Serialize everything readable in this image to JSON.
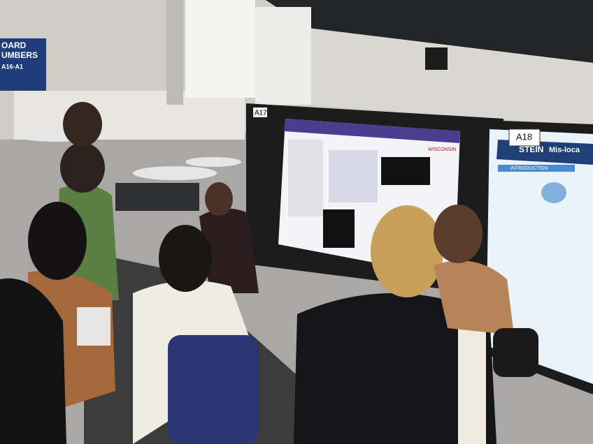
{
  "sign": {
    "lines": [
      "OARD",
      "UMBERS",
      "A16-A1"
    ]
  },
  "posters": [
    {
      "board": "A17",
      "logo": "WISCONSIN"
    },
    {
      "board": "A18",
      "header": "STEIN",
      "title": "Mis-loca",
      "section": "INTRODUCTION"
    }
  ]
}
